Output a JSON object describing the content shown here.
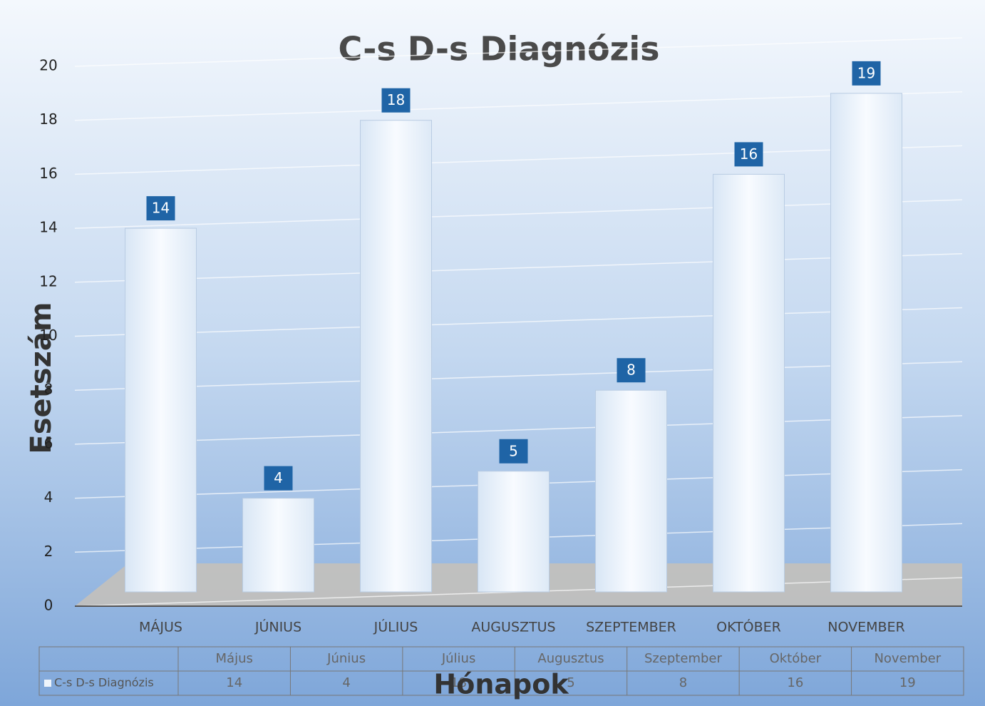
{
  "chart_data": {
    "type": "bar",
    "title": "C-s D-s Diagnózis",
    "y_label": "Esetszám",
    "x_label": "Hónapok",
    "categories": [
      "MÁJUS",
      "JÚNIUS",
      "JÚLIUS",
      "AUGUSZTUS",
      "SZEPTEMBER",
      "OKTÓBER",
      "NOVEMBER"
    ],
    "series": [
      {
        "name": "C-s D-s Diagnózis",
        "color": "#eef4fb",
        "values": [
          14,
          4,
          18,
          5,
          8,
          16,
          19
        ]
      }
    ],
    "ylim": [
      0,
      20
    ],
    "yticks": [
      0,
      2,
      4,
      6,
      8,
      10,
      12,
      14,
      16,
      18,
      20
    ],
    "grid": true,
    "data_table": {
      "columns": [
        "Május",
        "Június",
        "Július",
        "Augusztus",
        "Szeptember",
        "Október",
        "November"
      ]
    }
  }
}
